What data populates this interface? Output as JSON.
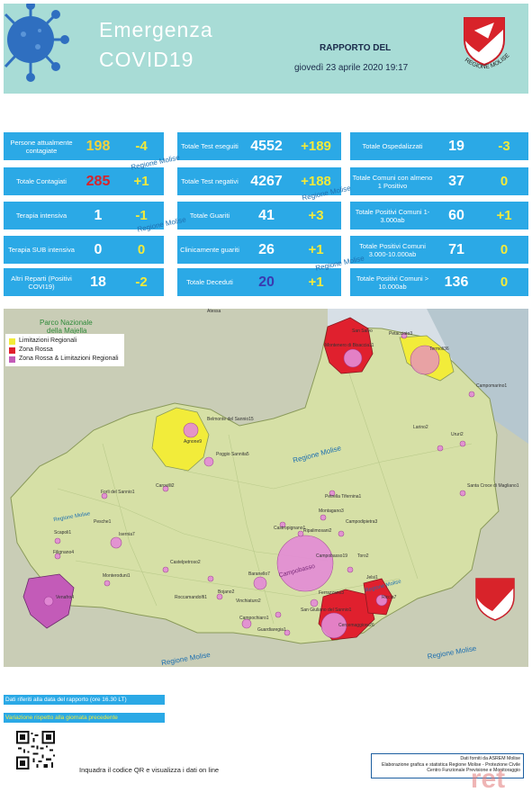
{
  "header": {
    "title_line1": "Emergenza",
    "title_line2": "COVID19",
    "report_label": "RAPPORTO DEL",
    "report_date": "giovedì 23 aprile 2020 19:17",
    "logo_text": "REGIONE MOLISE"
  },
  "stats": {
    "col1": [
      {
        "label": "Persone attualmente contagiate",
        "value": "198",
        "delta": "-4",
        "value_color": "#f3d23a"
      },
      {
        "label": "Totale Contagiati",
        "value": "285",
        "delta": "+1",
        "value_color": "#d8232a"
      },
      {
        "label": "Terapia intensiva",
        "value": "1",
        "delta": "-1",
        "value_color": "#ffffff"
      },
      {
        "label": "Terapia SUB intensiva",
        "value": "0",
        "delta": "0",
        "value_color": "#ffffff"
      },
      {
        "label": "Altri Reparti (Positivi COVI19)",
        "value": "18",
        "delta": "-2",
        "value_color": "#ffffff"
      }
    ],
    "col2": [
      {
        "label": "Totale Test eseguiti",
        "value": "4552",
        "delta": "+189",
        "value_color": "#ffffff"
      },
      {
        "label": "Totale Test negativi",
        "value": "4267",
        "delta": "+188",
        "value_color": "#ffffff"
      },
      {
        "label": "Totale Guariti",
        "value": "41",
        "delta": "+3",
        "value_color": "#ffffff"
      },
      {
        "label": "Clinicamente guariti",
        "value": "26",
        "delta": "+1",
        "value_color": "#ffffff"
      },
      {
        "label": "Totale Deceduti",
        "value": "20",
        "delta": "+1",
        "value_color": "#3a3ab0"
      }
    ],
    "col3": [
      {
        "label": "Totale Ospedalizzati",
        "value": "19",
        "delta": "-3",
        "value_color": "#ffffff"
      },
      {
        "label": "Totale Comuni con almeno 1 Positivo",
        "value": "37",
        "delta": "0",
        "value_color": "#ffffff"
      },
      {
        "label": "Totale Positivi Comuni 1-3.000ab",
        "value": "60",
        "delta": "+1",
        "value_color": "#ffffff"
      },
      {
        "label": "Totale Positivi Comuni 3.000-10.000ab",
        "value": "71",
        "delta": "0",
        "value_color": "#ffffff"
      },
      {
        "label": "Totale Positivi Comuni > 10.000ab",
        "value": "136",
        "delta": "0",
        "value_color": "#ffffff"
      }
    ]
  },
  "watermark": "Regione Molise",
  "legend": {
    "items": [
      {
        "label": "Limitazioni Regionali",
        "color": "#f2ec3a"
      },
      {
        "label": "Zona Rossa",
        "color": "#e0202e"
      },
      {
        "label": "Zona Rossa & Limitazioni Regionali",
        "color": "#c35bb8"
      }
    ]
  },
  "map": {
    "park_label_1": "Parco Nazionale",
    "park_label_2": "della Majella",
    "places": [
      "Petacciato3",
      "Termoli36",
      "Montenero di Bisaccia11",
      "Campomarino1",
      "Larino2",
      "Ururi2",
      "Belmonte del Sannio15",
      "Agnone9",
      "Poggio Sannita5",
      "Carovilli2",
      "Santa Croce di Magliano1",
      "Petrella Tifernina1",
      "Montagano3",
      "Campodipietra3",
      "Castropignano1",
      "Ripalimosani2",
      "Campobasso19",
      "Toro2",
      "Pesche1",
      "Pietrabbondante1",
      "Isernia7",
      "Scapoli1",
      "Filignano4",
      "Monteroduni1",
      "Castelpetroso2",
      "Baranello7",
      "Jelsi1",
      "Riccia7",
      "Ferrazzano3",
      "Roccamandolfi1",
      "Bojano2",
      "Vinchiaturo2",
      "San Giuliano del Sannio1",
      "Cercemaggiore26",
      "Venafro4",
      "Campochiaro1",
      "Guardiaregia1",
      "Forli del Sannio1",
      "Campobasso",
      "Atessa",
      "San Salvo"
    ]
  },
  "footer": {
    "bar1_text": "Dati riferiti alla data del rapporto  (ore 16.30 LT)",
    "bar2_text": "Variazione rispetto alla giornata precedente",
    "qr_text": "Inquadra il codice QR  e visualizza i dati on line",
    "credits": [
      "Dati forniti da ASREM Molise",
      "Elaborazione grafica e statistica Regione Molise - Protezione Civile",
      "Centro Funzionale Previsione e Monitoraggio"
    ],
    "stamp_text": "ret"
  }
}
